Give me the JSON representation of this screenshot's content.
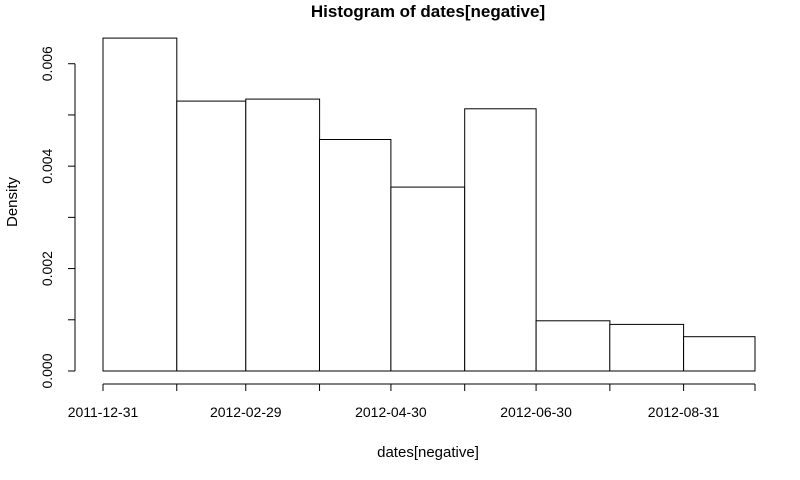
{
  "chart_data": {
    "type": "bar",
    "subtype": "histogram",
    "title": "Histogram of dates[negative]",
    "xlabel": "dates[negative]",
    "ylabel": "Density",
    "bin_edges": [
      "2011-12-31",
      "2012-01-31",
      "2012-02-29",
      "2012-03-31",
      "2012-04-30",
      "2012-05-31",
      "2012-06-30",
      "2012-07-31",
      "2012-08-31",
      "2012-09-30"
    ],
    "values": [
      0.0065,
      0.00527,
      0.00531,
      0.00452,
      0.00359,
      0.00512,
      0.00098,
      0.00091,
      0.00067
    ],
    "xlim": [
      "2011-12-31",
      "2012-09-30"
    ],
    "ylim": [
      0,
      0.0066
    ],
    "x_ticks": [
      "2011-12-31",
      "2012-01-31",
      "2012-02-29",
      "2012-03-31",
      "2012-04-30",
      "2012-05-31",
      "2012-06-30",
      "2012-07-31",
      "2012-08-31",
      "2012-09-30"
    ],
    "x_tick_labels": [
      "2011-12-31",
      "",
      "2012-02-29",
      "",
      "2012-04-30",
      "",
      "2012-06-30",
      "",
      "2012-08-31",
      ""
    ],
    "y_ticks": [
      0.0,
      0.001,
      0.002,
      0.003,
      0.004,
      0.005,
      0.006
    ],
    "y_tick_labels": [
      "0.000",
      "",
      "0.002",
      "",
      "0.004",
      "",
      "0.006"
    ],
    "grid": false,
    "bar_fill": "#ffffff",
    "bar_stroke": "#000000"
  }
}
